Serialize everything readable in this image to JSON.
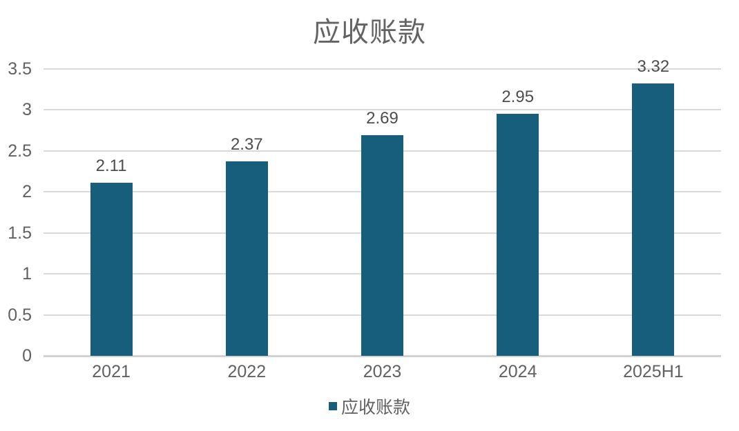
{
  "chart_data": {
    "type": "bar",
    "title": "应收账款",
    "categories": [
      "2021",
      "2022",
      "2023",
      "2024",
      "2025H1"
    ],
    "series": [
      {
        "name": "应收账款",
        "values": [
          2.11,
          2.37,
          2.69,
          2.95,
          3.32
        ]
      }
    ],
    "data_labels": [
      "2.11",
      "2.37",
      "2.69",
      "2.95",
      "3.32"
    ],
    "y_ticks": [
      "3.5",
      "3",
      "2.5",
      "2",
      "1.5",
      "1",
      "0.5",
      "0"
    ],
    "ylim": [
      0,
      3.5
    ],
    "grid": true,
    "legend_position": "bottom",
    "legend": {
      "label": "应收账款"
    },
    "colors": {
      "bar": "#165e7c",
      "title_text": "#636363",
      "axis_text": "#616161",
      "data_label_text": "#4d4d4d",
      "gridline": "#d9d9d9",
      "axis_line": "#d2d2d2"
    }
  }
}
